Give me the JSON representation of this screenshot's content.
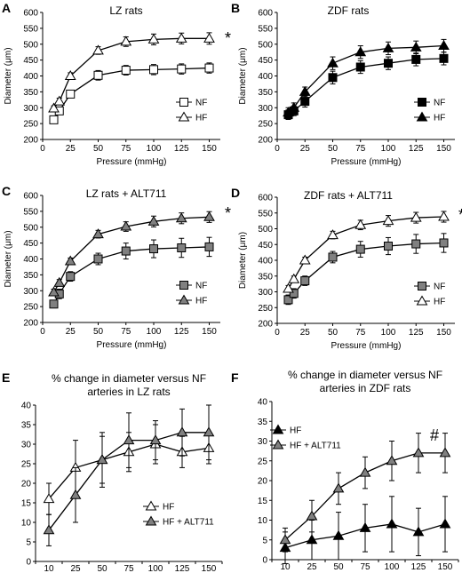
{
  "chart_data": [
    {
      "id": "A",
      "type": "line",
      "panel_label": "A",
      "title": "LZ rats",
      "xlabel": "Pressure (mmHg)",
      "ylabel": "Diameter (μm)",
      "x_axis": "numeric",
      "xlim": [
        0,
        160
      ],
      "xticks": [
        0,
        25,
        50,
        75,
        100,
        125,
        150
      ],
      "ylim": [
        200,
        600
      ],
      "yticks": [
        200,
        250,
        300,
        350,
        400,
        450,
        500,
        550,
        600
      ],
      "legend_position": "bottom-right",
      "annotation": "*",
      "series": [
        {
          "name": "NF",
          "marker": "square",
          "fill": "#ffffff",
          "x": [
            10,
            15,
            25,
            50,
            75,
            100,
            125,
            150
          ],
          "y": [
            262,
            290,
            343,
            402,
            418,
            420,
            422,
            425
          ],
          "err": [
            8,
            8,
            10,
            15,
            15,
            16,
            16,
            16
          ]
        },
        {
          "name": "HF",
          "marker": "triangle",
          "fill": "#ffffff",
          "x": [
            10,
            15,
            25,
            50,
            75,
            100,
            125,
            150
          ],
          "y": [
            298,
            320,
            400,
            480,
            508,
            515,
            518,
            518
          ],
          "err": [
            8,
            10,
            10,
            12,
            15,
            17,
            17,
            18
          ]
        }
      ]
    },
    {
      "id": "B",
      "type": "line",
      "panel_label": "B",
      "title": "ZDF rats",
      "xlabel": "Pressure (mmHg)",
      "ylabel": "Diameter (μm)",
      "x_axis": "numeric",
      "xlim": [
        0,
        160
      ],
      "xticks": [
        0,
        25,
        50,
        75,
        100,
        125,
        150
      ],
      "ylim": [
        200,
        600
      ],
      "yticks": [
        200,
        250,
        300,
        350,
        400,
        450,
        500,
        550,
        600
      ],
      "legend_position": "bottom-right",
      "annotation": "",
      "series": [
        {
          "name": "NF",
          "marker": "square",
          "fill": "#000000",
          "x": [
            10,
            15,
            25,
            50,
            75,
            100,
            125,
            150
          ],
          "y": [
            278,
            290,
            320,
            395,
            428,
            440,
            452,
            455
          ],
          "err": [
            15,
            15,
            18,
            20,
            20,
            20,
            20,
            20
          ]
        },
        {
          "name": "HF",
          "marker": "triangle",
          "fill": "#000000",
          "x": [
            10,
            15,
            25,
            50,
            75,
            100,
            125,
            150
          ],
          "y": [
            285,
            300,
            350,
            440,
            475,
            487,
            490,
            495
          ],
          "err": [
            15,
            15,
            15,
            20,
            20,
            20,
            20,
            20
          ]
        }
      ]
    },
    {
      "id": "C",
      "type": "line",
      "panel_label": "C",
      "title": "LZ rats + ALT711",
      "xlabel": "Pressure (mmHg)",
      "ylabel": "Diameter (μm)",
      "x_axis": "numeric",
      "xlim": [
        0,
        160
      ],
      "xticks": [
        0,
        25,
        50,
        75,
        100,
        125,
        150
      ],
      "ylim": [
        200,
        600
      ],
      "yticks": [
        200,
        250,
        300,
        350,
        400,
        450,
        500,
        550,
        600
      ],
      "legend_position": "bottom-right",
      "annotation": "*",
      "series": [
        {
          "name": "NF",
          "marker": "square",
          "fill": "#808080",
          "x": [
            10,
            15,
            25,
            50,
            75,
            100,
            125,
            150
          ],
          "y": [
            258,
            290,
            345,
            400,
            425,
            432,
            435,
            438
          ],
          "err": [
            12,
            15,
            15,
            18,
            25,
            28,
            30,
            30
          ]
        },
        {
          "name": "HF",
          "marker": "triangle",
          "fill": "#808080",
          "x": [
            10,
            15,
            25,
            50,
            75,
            100,
            125,
            150
          ],
          "y": [
            295,
            325,
            393,
            478,
            502,
            518,
            528,
            532
          ],
          "err": [
            10,
            10,
            10,
            12,
            15,
            17,
            17,
            17
          ]
        }
      ]
    },
    {
      "id": "D",
      "type": "line",
      "panel_label": "D",
      "title": "ZDF rats + ALT711",
      "xlabel": "Pressure (mmHg)",
      "ylabel": "Diameter (μm)",
      "x_axis": "numeric",
      "xlim": [
        0,
        160
      ],
      "xticks": [
        0,
        25,
        50,
        75,
        100,
        125,
        150
      ],
      "ylim": [
        200,
        600
      ],
      "yticks": [
        200,
        250,
        300,
        350,
        400,
        450,
        500,
        550,
        600
      ],
      "legend_position": "bottom-right",
      "annotation": "*",
      "series": [
        {
          "name": "NF",
          "marker": "square",
          "fill": "#808080",
          "x": [
            10,
            15,
            25,
            50,
            75,
            100,
            125,
            150
          ],
          "y": [
            275,
            295,
            335,
            410,
            435,
            445,
            452,
            455
          ],
          "err": [
            15,
            15,
            15,
            18,
            25,
            27,
            30,
            30
          ]
        },
        {
          "name": "HF",
          "marker": "triangle",
          "fill": "#ffffff",
          "x": [
            10,
            15,
            25,
            50,
            75,
            100,
            125,
            150
          ],
          "y": [
            310,
            340,
            400,
            480,
            512,
            525,
            535,
            538
          ],
          "err": [
            10,
            10,
            10,
            12,
            15,
            17,
            17,
            17
          ]
        }
      ]
    },
    {
      "id": "E",
      "type": "line",
      "panel_label": "E",
      "title_lines": [
        "% change in diameter versus NF",
        "arteries in LZ rats"
      ],
      "xlabel": "",
      "ylabel": "",
      "x_axis": "categorical",
      "categories": [
        "10",
        "25",
        "50",
        "75",
        "100",
        "125",
        "150"
      ],
      "ylim": [
        0,
        40
      ],
      "yticks": [
        0,
        5,
        10,
        15,
        20,
        25,
        30,
        35,
        40
      ],
      "legend_position": "bottom-right",
      "annotation": "",
      "series": [
        {
          "name": "HF",
          "marker": "triangle",
          "fill": "#ffffff",
          "y": [
            16,
            24,
            26,
            28,
            30,
            28,
            29
          ],
          "err": [
            4,
            7,
            7,
            5,
            5,
            4,
            4
          ]
        },
        {
          "name": "HF + ALT711",
          "marker": "triangle",
          "fill": "#808080",
          "y": [
            8,
            17,
            26,
            31,
            31,
            33,
            33
          ],
          "err": [
            4,
            7,
            6,
            7,
            5,
            6,
            7
          ]
        }
      ]
    },
    {
      "id": "F",
      "type": "line",
      "panel_label": "F",
      "title_lines": [
        "% change in diameter versus NF",
        "arteries in ZDF rats"
      ],
      "xlabel": "",
      "ylabel": "",
      "x_axis": "categorical",
      "categories": [
        "10",
        "25",
        "50",
        "75",
        "100",
        "125",
        "150"
      ],
      "ylim": [
        0,
        40
      ],
      "yticks": [
        0,
        5,
        10,
        15,
        20,
        25,
        30,
        35,
        40
      ],
      "legend_position": "top-left",
      "annotation": "#",
      "series": [
        {
          "name": "HF",
          "marker": "triangle",
          "fill": "#000000",
          "y": [
            3,
            5,
            6,
            8,
            9,
            7,
            9
          ],
          "err": [
            4,
            5,
            6,
            6,
            7,
            6,
            7
          ]
        },
        {
          "name": "HF + ALT711",
          "marker": "triangle",
          "fill": "#808080",
          "y": [
            5,
            11,
            18,
            22,
            25,
            27,
            27
          ],
          "err": [
            3,
            4,
            4,
            4,
            5,
            5,
            5
          ]
        }
      ]
    }
  ]
}
